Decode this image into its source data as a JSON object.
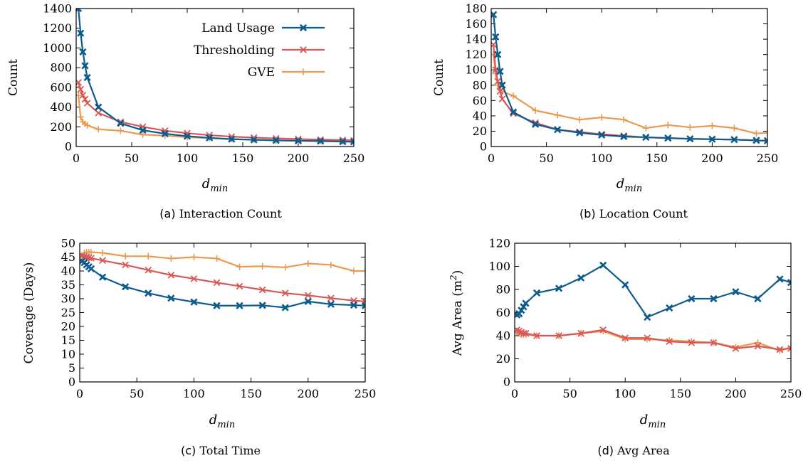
{
  "colors": {
    "Land Usage": "#0e5c8c",
    "Thresholding": "#d95757",
    "GVE": "#e99a4f"
  },
  "markers": {
    "Land Usage": "boxx",
    "Thresholding": "x",
    "GVE": "plus"
  },
  "legend": {
    "placement": "top-right of panel (a)",
    "entries": [
      "Land Usage",
      "Thresholding",
      "GVE"
    ]
  },
  "chart_data": [
    {
      "id": "a",
      "type": "line",
      "caption_letter": "(a)",
      "caption_text": "Interaction Count",
      "xlabel_base": "d",
      "xlabel_sub": "min",
      "ylabel": "Count",
      "ylabel_sup": "",
      "ylabel_after": "",
      "xlim": [
        0,
        250
      ],
      "ylim": [
        0,
        1400
      ],
      "xticks": [
        0,
        50,
        100,
        150,
        200,
        250
      ],
      "yticks": [
        0,
        200,
        400,
        600,
        800,
        1000,
        1200,
        1400
      ],
      "show_legend": true,
      "x": [
        2,
        4,
        6,
        8,
        10,
        20,
        40,
        60,
        80,
        100,
        120,
        140,
        160,
        180,
        200,
        220,
        240,
        250
      ],
      "series": [
        {
          "name": "Land Usage",
          "values": [
            1400,
            1150,
            960,
            820,
            700,
            400,
            235,
            165,
            130,
            105,
            88,
            75,
            68,
            62,
            58,
            55,
            50,
            48
          ]
        },
        {
          "name": "Thresholding",
          "values": [
            650,
            580,
            520,
            480,
            440,
            340,
            250,
            200,
            160,
            135,
            115,
            100,
            90,
            82,
            76,
            70,
            66,
            62
          ]
        },
        {
          "name": "GVE",
          "values": [
            520,
            300,
            250,
            230,
            215,
            175,
            160,
            120,
            110,
            95,
            85,
            75,
            68,
            62,
            58,
            55,
            52,
            50
          ]
        }
      ]
    },
    {
      "id": "b",
      "type": "line",
      "caption_letter": "(b)",
      "caption_text": "Location Count",
      "xlabel_base": "d",
      "xlabel_sub": "min",
      "ylabel": "Count",
      "ylabel_sup": "",
      "ylabel_after": "",
      "xlim": [
        0,
        250
      ],
      "ylim": [
        0,
        180
      ],
      "xticks": [
        0,
        50,
        100,
        150,
        200,
        250
      ],
      "yticks": [
        0,
        20,
        40,
        60,
        80,
        100,
        120,
        140,
        160,
        180
      ],
      "show_legend": false,
      "x": [
        2,
        4,
        6,
        8,
        10,
        20,
        40,
        60,
        80,
        100,
        120,
        140,
        160,
        180,
        200,
        220,
        240,
        250
      ],
      "series": [
        {
          "name": "Land Usage",
          "values": [
            172,
            143,
            120,
            98,
            80,
            45,
            29,
            22,
            18,
            15,
            13,
            12,
            11,
            10,
            9.5,
            9,
            8,
            7.5
          ]
        },
        {
          "name": "Thresholding",
          "values": [
            133,
            100,
            85,
            72,
            62,
            43,
            31,
            22,
            19,
            16,
            14,
            12,
            11,
            10,
            9.5,
            9,
            8,
            7.5
          ]
        },
        {
          "name": "GVE",
          "values": [
            120,
            95,
            80,
            75,
            72,
            66,
            47,
            41,
            35,
            38,
            35,
            24,
            28,
            25,
            27,
            24,
            17,
            18
          ]
        }
      ]
    },
    {
      "id": "c",
      "type": "line",
      "caption_letter": "(c)",
      "caption_text": "Total Time",
      "xlabel_base": "d",
      "xlabel_sub": "min",
      "ylabel": "Coverage (Days)",
      "ylabel_sup": "",
      "ylabel_after": "",
      "xlim": [
        0,
        250
      ],
      "ylim": [
        0,
        50
      ],
      "xticks": [
        0,
        50,
        100,
        150,
        200,
        250
      ],
      "yticks": [
        0,
        5,
        10,
        15,
        20,
        25,
        30,
        35,
        40,
        45,
        50
      ],
      "show_legend": false,
      "x": [
        2,
        4,
        6,
        8,
        10,
        20,
        40,
        60,
        80,
        100,
        120,
        140,
        160,
        180,
        200,
        220,
        240,
        250
      ],
      "series": [
        {
          "name": "Land Usage",
          "values": [
            43.5,
            43,
            42.2,
            41.5,
            40.8,
            37.8,
            34.3,
            32,
            30.2,
            28.8,
            27.5,
            27.5,
            27.6,
            26.8,
            29,
            28,
            27.7,
            27.5
          ]
        },
        {
          "name": "Thresholding",
          "values": [
            45.5,
            45.2,
            45,
            44.8,
            44.6,
            43.8,
            42.2,
            40.3,
            38.5,
            37.2,
            35.8,
            34.5,
            33.2,
            32,
            31.2,
            30.2,
            29.3,
            29
          ]
        },
        {
          "name": "GVE",
          "values": [
            45.5,
            46.5,
            46.8,
            46.8,
            46.8,
            46.5,
            45.3,
            45.3,
            44.5,
            45,
            44.5,
            41.5,
            41.7,
            41.3,
            42.7,
            42.2,
            40,
            40
          ]
        }
      ]
    },
    {
      "id": "d",
      "type": "line",
      "caption_letter": "(d)",
      "caption_text": "Avg Area",
      "xlabel_base": "d",
      "xlabel_sub": "min",
      "ylabel": "Avg Area (m",
      "ylabel_sup": "2",
      "ylabel_after": ")",
      "xlim": [
        0,
        250
      ],
      "ylim": [
        0,
        120
      ],
      "xticks": [
        0,
        50,
        100,
        150,
        200,
        250
      ],
      "yticks": [
        0,
        20,
        40,
        60,
        80,
        100,
        120
      ],
      "show_legend": false,
      "x": [
        2,
        4,
        6,
        8,
        10,
        20,
        40,
        60,
        80,
        100,
        120,
        140,
        160,
        180,
        200,
        220,
        240,
        250
      ],
      "series": [
        {
          "name": "Land Usage",
          "values": [
            58,
            59,
            62,
            65,
            68,
            77,
            81,
            90,
            101,
            84,
            56,
            64,
            72,
            72,
            78,
            72,
            89,
            86
          ]
        },
        {
          "name": "Thresholding",
          "values": [
            45,
            44,
            43,
            42,
            42,
            40,
            40,
            42,
            45,
            38,
            38,
            35,
            34,
            34,
            29,
            31,
            28,
            29
          ]
        },
        {
          "name": "GVE",
          "values": [
            43,
            42,
            41,
            41,
            41,
            40,
            40,
            42,
            44,
            37,
            37,
            36,
            35,
            34,
            30,
            34,
            27,
            30
          ]
        }
      ]
    }
  ]
}
